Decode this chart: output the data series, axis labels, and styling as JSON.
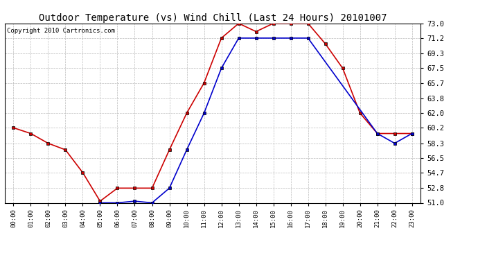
{
  "title": "Outdoor Temperature (vs) Wind Chill (Last 24 Hours) 20101007",
  "copyright": "Copyright 2010 Cartronics.com",
  "hours": [
    "00:00",
    "01:00",
    "02:00",
    "03:00",
    "04:00",
    "05:00",
    "06:00",
    "07:00",
    "08:00",
    "09:00",
    "10:00",
    "11:00",
    "12:00",
    "13:00",
    "14:00",
    "15:00",
    "16:00",
    "17:00",
    "18:00",
    "19:00",
    "20:00",
    "21:00",
    "22:00",
    "23:00"
  ],
  "temp": [
    60.2,
    59.5,
    58.3,
    57.5,
    54.7,
    51.2,
    52.8,
    52.8,
    52.8,
    57.5,
    62.0,
    65.7,
    71.2,
    73.0,
    72.0,
    73.0,
    73.0,
    73.0,
    70.5,
    67.5,
    62.0,
    59.5,
    59.5,
    59.5
  ],
  "windchill": [
    null,
    null,
    null,
    null,
    null,
    51.0,
    51.0,
    51.2,
    51.0,
    52.8,
    57.5,
    62.0,
    67.5,
    71.2,
    71.2,
    71.2,
    71.2,
    71.2,
    null,
    null,
    null,
    59.5,
    58.3,
    59.5
  ],
  "ylim": [
    51.0,
    73.0
  ],
  "yticks": [
    51.0,
    52.8,
    54.7,
    56.5,
    58.3,
    60.2,
    62.0,
    63.8,
    65.7,
    67.5,
    69.3,
    71.2,
    73.0
  ],
  "temp_color": "#cc0000",
  "windchill_color": "#0000cc",
  "background_color": "#ffffff",
  "grid_color": "#bbbbbb",
  "title_fontsize": 10,
  "copyright_fontsize": 6.5
}
